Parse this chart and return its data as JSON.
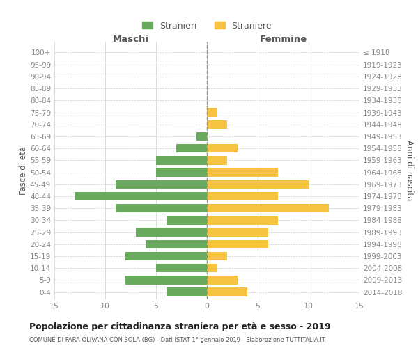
{
  "age_groups": [
    "0-4",
    "5-9",
    "10-14",
    "15-19",
    "20-24",
    "25-29",
    "30-34",
    "35-39",
    "40-44",
    "45-49",
    "50-54",
    "55-59",
    "60-64",
    "65-69",
    "70-74",
    "75-79",
    "80-84",
    "85-89",
    "90-94",
    "95-99",
    "100+"
  ],
  "birth_years": [
    "2014-2018",
    "2009-2013",
    "2004-2008",
    "1999-2003",
    "1994-1998",
    "1989-1993",
    "1984-1988",
    "1979-1983",
    "1974-1978",
    "1969-1973",
    "1964-1968",
    "1959-1963",
    "1954-1958",
    "1949-1953",
    "1944-1948",
    "1939-1943",
    "1934-1938",
    "1929-1933",
    "1924-1928",
    "1919-1923",
    "≤ 1918"
  ],
  "males": [
    4,
    8,
    5,
    8,
    6,
    7,
    4,
    9,
    13,
    9,
    5,
    5,
    3,
    1,
    0,
    0,
    0,
    0,
    0,
    0,
    0
  ],
  "females": [
    4,
    3,
    1,
    2,
    6,
    6,
    7,
    12,
    7,
    10,
    7,
    2,
    3,
    0,
    2,
    1,
    0,
    0,
    0,
    0,
    0
  ],
  "male_color": "#6aaa5e",
  "female_color": "#f5c242",
  "title": "Popolazione per cittadinanza straniera per età e sesso - 2019",
  "subtitle": "COMUNE DI FARA OLIVANA CON SOLA (BG) - Dati ISTAT 1° gennaio 2019 - Elaborazione TUTTITALIA.IT",
  "xlabel_left": "Maschi",
  "xlabel_right": "Femmine",
  "ylabel_left": "Fasce di età",
  "ylabel_right": "Anni di nascita",
  "legend_male": "Stranieri",
  "legend_female": "Straniere",
  "xlim": 15,
  "background_color": "#ffffff",
  "grid_color": "#cccccc",
  "tick_color": "#888888",
  "label_color": "#555555",
  "center_line_color": "#999966"
}
